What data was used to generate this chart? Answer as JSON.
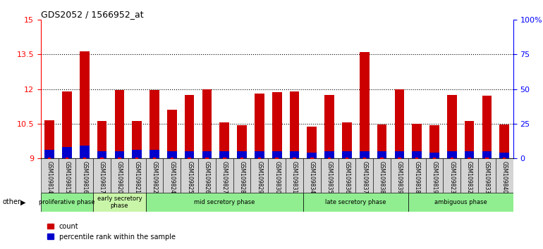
{
  "title": "GDS2052 / 1566952_at",
  "samples": [
    "GSM109814",
    "GSM109815",
    "GSM109816",
    "GSM109817",
    "GSM109820",
    "GSM109821",
    "GSM109822",
    "GSM109824",
    "GSM109825",
    "GSM109826",
    "GSM109827",
    "GSM109828",
    "GSM109829",
    "GSM109830",
    "GSM109831",
    "GSM109834",
    "GSM109835",
    "GSM109836",
    "GSM109837",
    "GSM109838",
    "GSM109839",
    "GSM109818",
    "GSM109819",
    "GSM109823",
    "GSM109832",
    "GSM109833",
    "GSM109840"
  ],
  "count_values": [
    10.65,
    11.9,
    13.65,
    10.6,
    11.95,
    10.6,
    11.95,
    11.1,
    11.75,
    12.0,
    10.55,
    10.43,
    11.8,
    11.85,
    11.9,
    10.37,
    11.75,
    10.55,
    13.6,
    10.47,
    12.0,
    10.5,
    10.43,
    11.75,
    10.6,
    11.7,
    10.45
  ],
  "percentile_values": [
    6,
    8,
    9,
    5,
    5,
    6,
    6,
    5,
    5,
    5,
    5,
    5,
    5,
    5,
    5,
    4,
    5,
    5,
    5,
    5,
    5,
    5,
    4,
    5,
    5,
    5,
    4
  ],
  "ymin": 9,
  "ymax": 15,
  "yticks": [
    9,
    10.5,
    12,
    13.5,
    15
  ],
  "ytick_labels": [
    "9",
    "10.5",
    "12",
    "13.5",
    "15"
  ],
  "right_yticks": [
    0,
    25,
    50,
    75,
    100
  ],
  "right_ytick_labels": [
    "0",
    "25",
    "50",
    "75",
    "100%"
  ],
  "phases": [
    {
      "label": "proliferative phase",
      "start": 0,
      "end": 3,
      "color": "#90EE90"
    },
    {
      "label": "early secretory\nphase",
      "start": 3,
      "end": 6,
      "color": "#c8f5a8"
    },
    {
      "label": "mid secretory phase",
      "start": 6,
      "end": 15,
      "color": "#90EE90"
    },
    {
      "label": "late secretory phase",
      "start": 15,
      "end": 21,
      "color": "#90EE90"
    },
    {
      "label": "ambiguous phase",
      "start": 21,
      "end": 27,
      "color": "#90EE90"
    }
  ],
  "bar_color_red": "#cc0000",
  "bar_color_blue": "#0000cc",
  "bar_width": 0.55,
  "bg_color": "#ffffff",
  "tick_bg_color": "#d4d4d4"
}
